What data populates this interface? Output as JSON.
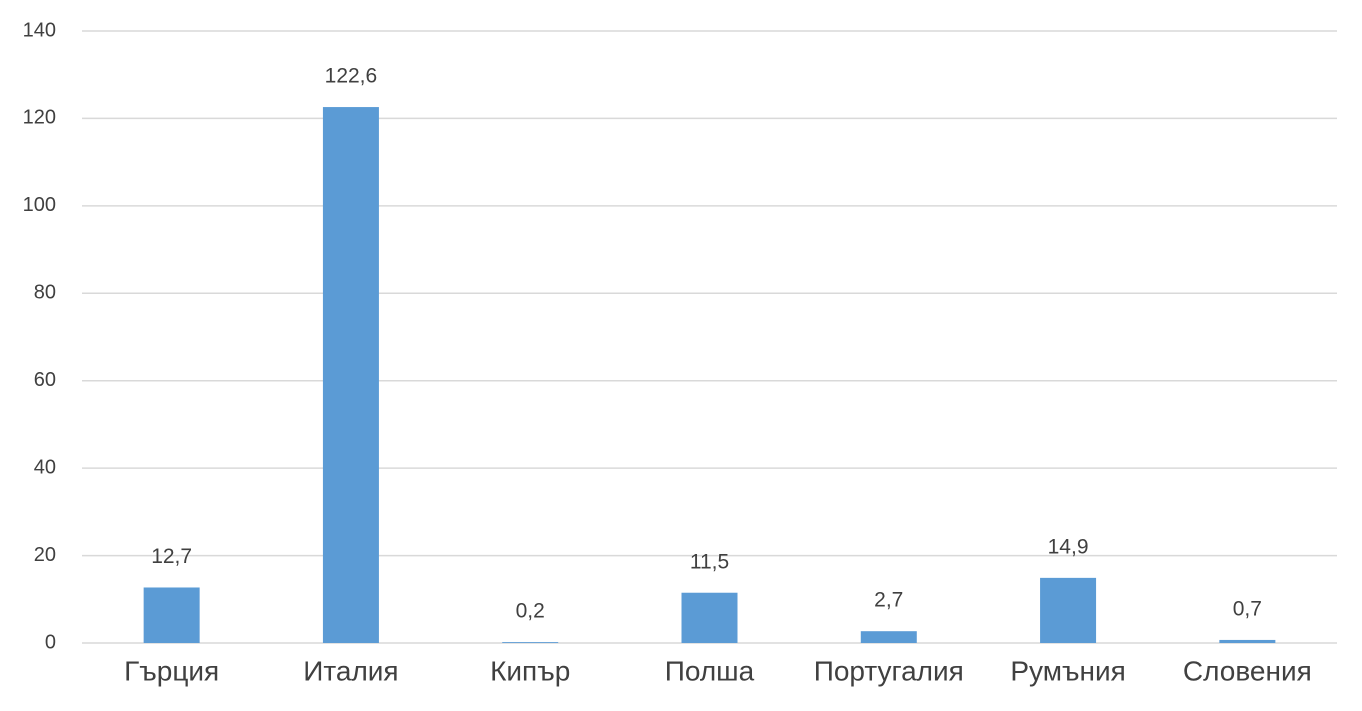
{
  "chart_data": {
    "type": "bar",
    "categories": [
      "Гърция",
      "Италия",
      "Кипър",
      "Полша",
      "Португалия",
      "Румъния",
      "Словения"
    ],
    "values": [
      12.7,
      122.6,
      0.2,
      11.5,
      2.7,
      14.9,
      0.7
    ],
    "value_labels": [
      "12,7",
      "122,6",
      "0,2",
      "11,5",
      "2,7",
      "14,9",
      "0,7"
    ],
    "color": "#5b9bd5",
    "ylim": [
      0,
      140
    ],
    "yticks": [
      0,
      20,
      40,
      60,
      80,
      100,
      120,
      140
    ],
    "grid": true
  }
}
